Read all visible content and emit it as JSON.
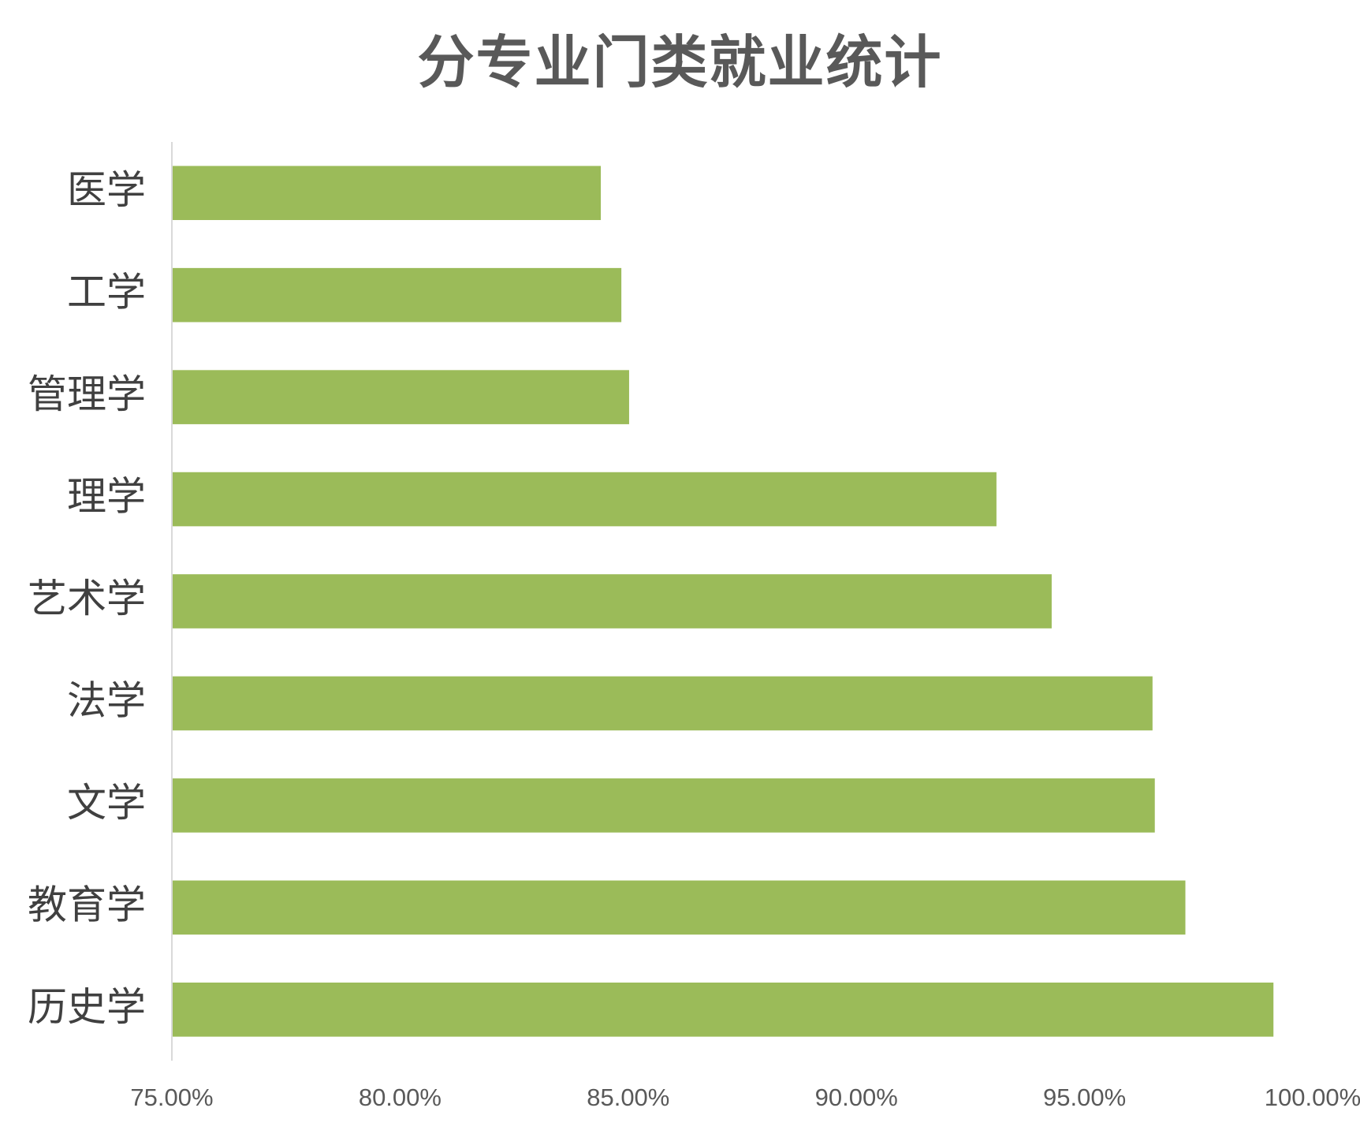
{
  "chart_data": {
    "type": "bar",
    "orientation": "horizontal",
    "title": "分专业门类就业统计",
    "categories": [
      "医学",
      "工学",
      "管理学",
      "理学",
      "艺术学",
      "法学",
      "文学",
      "教育学",
      "历史学"
    ],
    "values": [
      84.4,
      84.85,
      85.02,
      93.07,
      94.28,
      96.49,
      96.54,
      97.21,
      99.14
    ],
    "value_unit": "%",
    "xlim": [
      75,
      100
    ],
    "xticks": [
      "75.00%",
      "80.00%",
      "85.00%",
      "90.00%",
      "95.00%",
      "100.00%"
    ],
    "bar_color": "#9BBB59",
    "grid": false,
    "legend": "none"
  }
}
